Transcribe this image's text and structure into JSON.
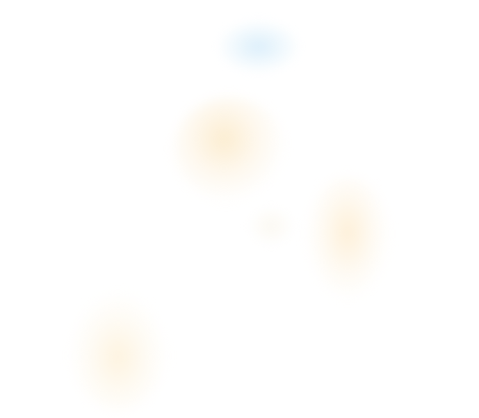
{
  "palette": {
    "background": "#ffffff",
    "blue_blob": "#d6ecfa",
    "orange_blob": "#fcecce",
    "pale_blob": "#faf6ec"
  },
  "blobs": [
    {
      "id": "blob-1",
      "color": "blue"
    },
    {
      "id": "blob-2",
      "color": "orange"
    },
    {
      "id": "blob-3",
      "color": "orange"
    },
    {
      "id": "blob-4",
      "color": "orange"
    },
    {
      "id": "blob-5",
      "color": "pale"
    }
  ]
}
